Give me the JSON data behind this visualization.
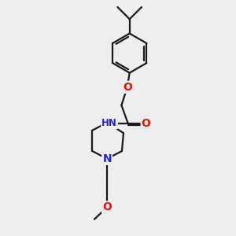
{
  "bg_color": "#eeeeee",
  "bond_color": "#1a1a1a",
  "bond_width": 1.6,
  "atom_colors": {
    "O": "#ee1100",
    "N": "#2222dd",
    "H": "#22aaaa",
    "C": "#1a1a1a"
  },
  "font_size": 8.5,
  "figsize": [
    3.0,
    3.0
  ],
  "dpi": 100
}
